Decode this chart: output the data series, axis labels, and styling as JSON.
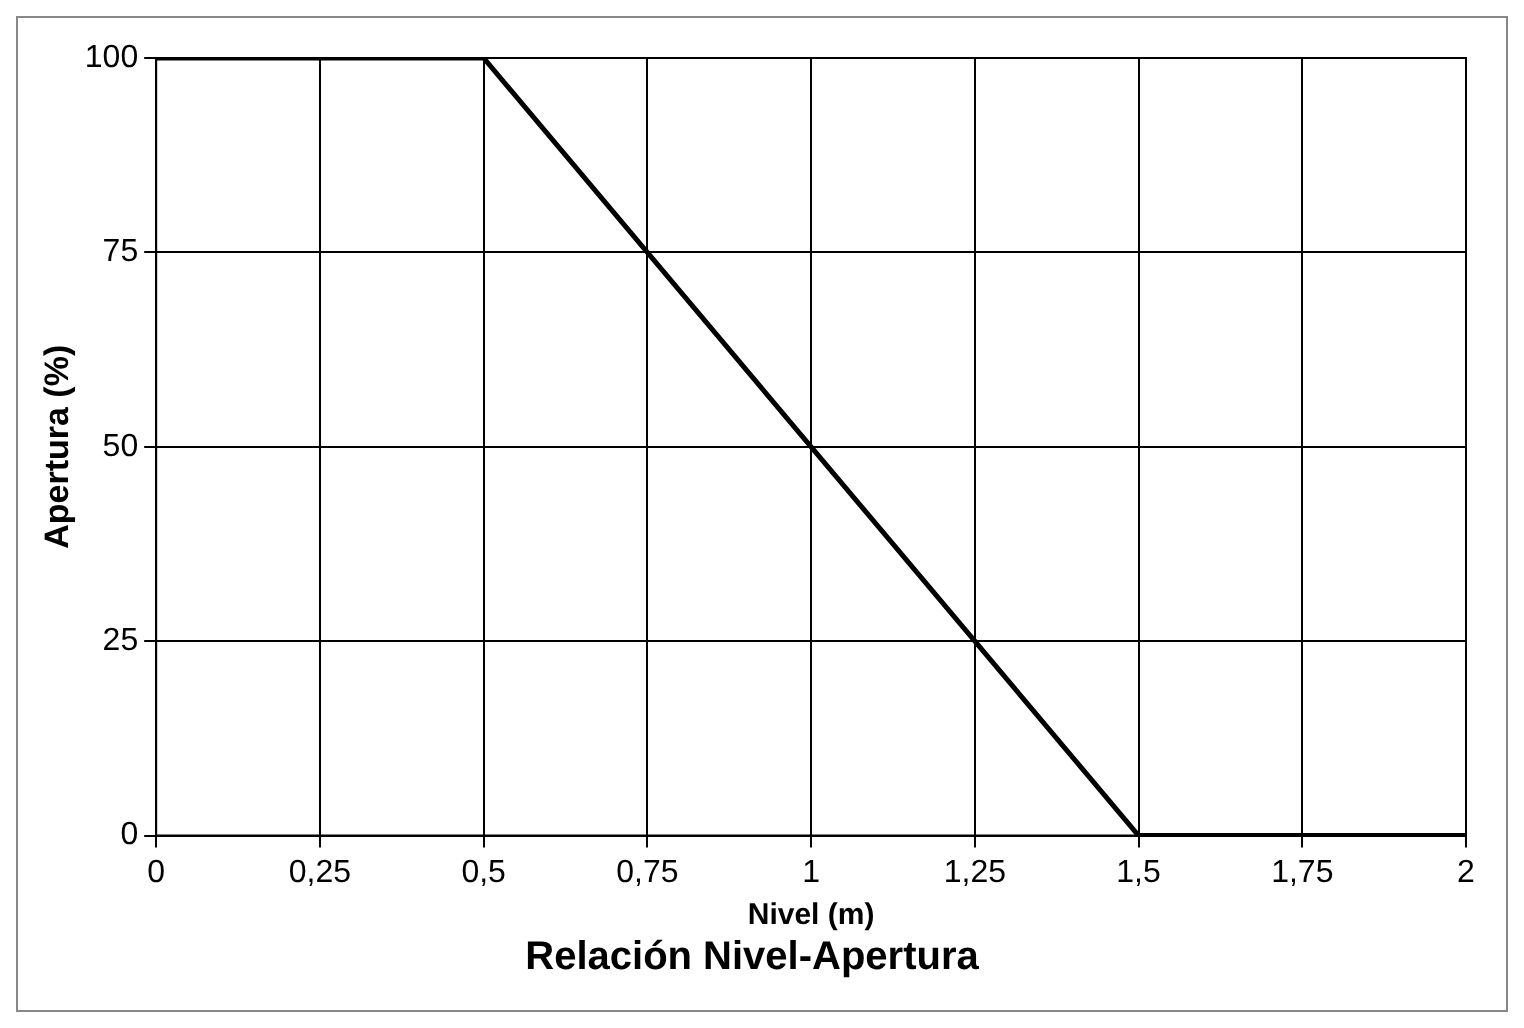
{
  "chart_data": {
    "type": "line",
    "title": "Relación Nivel-Apertura",
    "xlabel": "Nivel (m)",
    "ylabel": "Apertura (%)",
    "x": [
      0,
      0.5,
      1.5,
      2
    ],
    "series": [
      {
        "color": "#000000",
        "values": [
          100,
          100,
          0,
          0
        ]
      }
    ],
    "xlim": [
      0,
      2
    ],
    "xticks": [
      0,
      {
        "value": 0.25,
        "label": "0,25"
      },
      {
        "value": 0.5,
        "label": "0,5"
      },
      {
        "value": 0.75,
        "label": "0,75"
      },
      1,
      {
        "value": 1.25,
        "label": "1,25"
      },
      {
        "value": 1.5,
        "label": "1,5"
      },
      {
        "value": 1.75,
        "label": "1,75"
      },
      2
    ],
    "ylim": [
      0,
      100
    ],
    "yticks": [
      0,
      25,
      50,
      75,
      100
    ],
    "grid": true,
    "legend": false,
    "marker": "none",
    "line_style": "solid"
  }
}
